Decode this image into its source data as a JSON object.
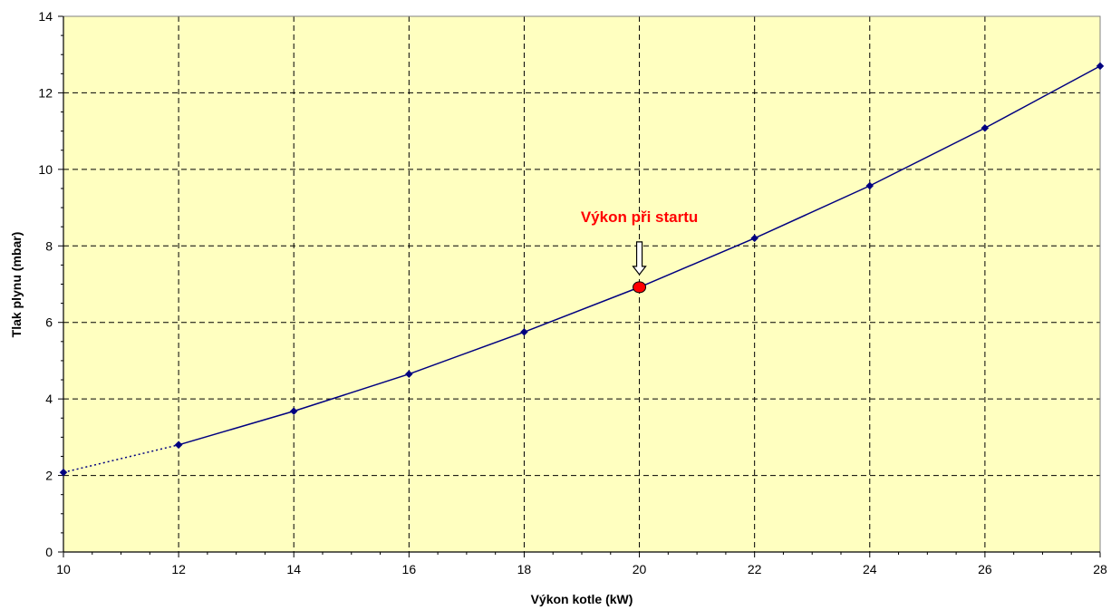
{
  "chart_data": {
    "type": "line",
    "xlabel": "Výkon kotle (kW)",
    "ylabel": "Tlak plynu (mbar)",
    "xlim": [
      10,
      28
    ],
    "ylim": [
      0,
      14
    ],
    "x_ticks": [
      10,
      12,
      14,
      16,
      18,
      20,
      22,
      24,
      26,
      28
    ],
    "y_ticks": [
      0,
      2,
      4,
      6,
      8,
      10,
      12,
      14
    ],
    "x_tick_labels": [
      "10",
      "12",
      "14",
      "16",
      "18",
      "20",
      "22",
      "24",
      "26",
      "28"
    ],
    "y_tick_labels": [
      "0",
      "2",
      "4",
      "6",
      "8",
      "10",
      "12",
      "14"
    ],
    "grid": true,
    "legend": false,
    "series": [
      {
        "line_style": "solid",
        "color": "#000080",
        "marker": "diamond",
        "x": [
          12,
          14,
          16,
          18,
          20,
          22,
          24,
          26,
          28
        ],
        "y": [
          2.8,
          3.68,
          4.65,
          5.75,
          6.92,
          8.2,
          9.57,
          11.08,
          12.7
        ]
      },
      {
        "line_style": "dotted",
        "color": "#000080",
        "marker": "diamond",
        "x": [
          10,
          12
        ],
        "y": [
          2.08,
          2.8
        ]
      }
    ],
    "annotation": {
      "text": "Výkon při startu",
      "x": 20,
      "y": 6.92,
      "color": "#ff0000",
      "marker_color": "#ff0000"
    },
    "colors": {
      "plot_background": "#ffffc0",
      "grid": "#000000",
      "line": "#000080"
    }
  }
}
